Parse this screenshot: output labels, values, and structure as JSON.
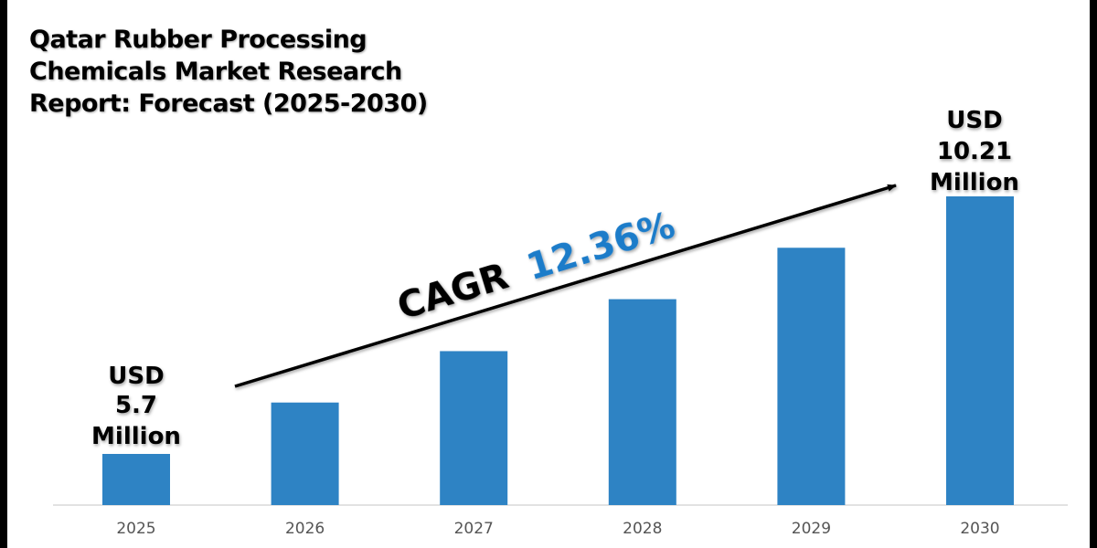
{
  "chart_data": {
    "type": "bar",
    "title": [
      "Qatar Rubber Processing",
      "Chemicals Market Research",
      "Report: Forecast (2025-2030)"
    ],
    "categories": [
      "2025",
      "2026",
      "2027",
      "2028",
      "2029",
      "2030"
    ],
    "values": [
      5.7,
      6.6,
      7.5,
      8.41,
      9.31,
      10.21
    ],
    "unit": "USD Million",
    "xlabel": "",
    "ylabel": "",
    "grid": false,
    "legend": "none",
    "bar_color": "#2e83c4",
    "annotations": {
      "start_label": [
        "USD",
        "5.7",
        "Million"
      ],
      "end_label": [
        "USD",
        "10.21",
        "Million"
      ],
      "cagr_prefix": "CAGR",
      "cagr_value": "12.36%",
      "cagr_color": "#1a7bc9",
      "trend_arrow": "increasing"
    }
  }
}
